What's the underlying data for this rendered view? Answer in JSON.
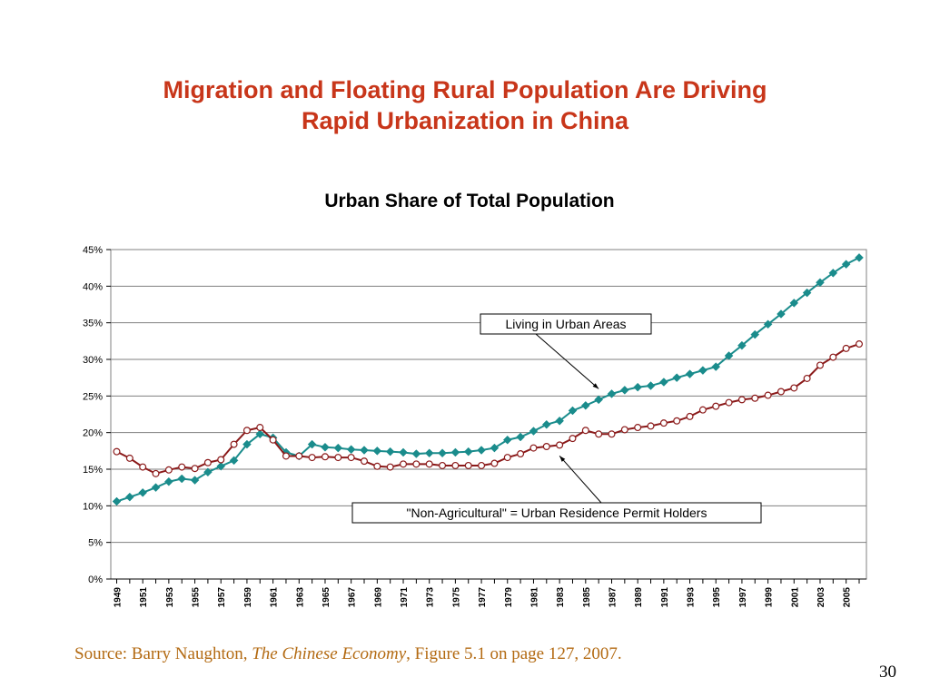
{
  "slide": {
    "title_line1": "Migration and Floating Rural Population Are Driving",
    "title_line2": "Rapid Urbanization in China",
    "source_prefix": "Source: Barry Naughton, ",
    "source_book": "The Chinese Economy",
    "source_suffix": ", Figure 5.1 on page 127, 2007.",
    "page_number": "30"
  },
  "chart_data": {
    "type": "line",
    "title": "Urban Share of Total Population",
    "xlabel": "",
    "ylabel": "",
    "ylim": [
      0,
      45
    ],
    "y_ticks": [
      "0%",
      "5%",
      "10%",
      "15%",
      "20%",
      "25%",
      "30%",
      "35%",
      "40%",
      "45%"
    ],
    "grid": true,
    "x": [
      1949,
      1950,
      1951,
      1952,
      1953,
      1954,
      1955,
      1956,
      1957,
      1958,
      1959,
      1960,
      1961,
      1962,
      1963,
      1964,
      1965,
      1966,
      1967,
      1968,
      1969,
      1970,
      1971,
      1972,
      1973,
      1974,
      1975,
      1976,
      1977,
      1978,
      1979,
      1980,
      1981,
      1982,
      1983,
      1984,
      1985,
      1986,
      1987,
      1988,
      1989,
      1990,
      1991,
      1992,
      1993,
      1994,
      1995,
      1996,
      1997,
      1998,
      1999,
      2000,
      2001,
      2002,
      2003,
      2004,
      2005,
      2006
    ],
    "x_tick_labels": [
      "1949",
      "1951",
      "1953",
      "1955",
      "1957",
      "1959",
      "1961",
      "1963",
      "1965",
      "1967",
      "1969",
      "1971",
      "1973",
      "1975",
      "1977",
      "1979",
      "1981",
      "1983",
      "1985",
      "1987",
      "1989",
      "1991",
      "1993",
      "1995",
      "1997",
      "1999",
      "2001",
      "2003",
      "2005"
    ],
    "series": [
      {
        "name": "Living in Urban Areas",
        "color": "#1a8c8c",
        "marker": "diamond",
        "values": [
          10.6,
          11.2,
          11.8,
          12.5,
          13.3,
          13.7,
          13.5,
          14.6,
          15.4,
          16.2,
          18.4,
          19.8,
          19.3,
          17.3,
          16.8,
          18.4,
          18.0,
          17.9,
          17.7,
          17.6,
          17.5,
          17.4,
          17.3,
          17.1,
          17.2,
          17.2,
          17.3,
          17.4,
          17.6,
          17.9,
          19.0,
          19.4,
          20.2,
          21.1,
          21.6,
          23.0,
          23.7,
          24.5,
          25.3,
          25.8,
          26.2,
          26.4,
          26.9,
          27.5,
          28.0,
          28.5,
          29.0,
          30.5,
          31.9,
          33.4,
          34.8,
          36.2,
          37.7,
          39.1,
          40.5,
          41.8,
          43.0,
          43.9
        ]
      },
      {
        "name": "\"Non-Agricultural\" = Urban Residence Permit Holders",
        "color": "#8b1a1a",
        "marker": "circle",
        "values": [
          17.4,
          16.5,
          15.3,
          14.4,
          14.9,
          15.3,
          15.1,
          15.9,
          16.3,
          18.4,
          20.3,
          20.7,
          19.0,
          16.8,
          16.8,
          16.6,
          16.7,
          16.6,
          16.6,
          16.1,
          15.4,
          15.3,
          15.7,
          15.7,
          15.7,
          15.5,
          15.5,
          15.5,
          15.5,
          15.8,
          16.6,
          17.1,
          17.9,
          18.1,
          18.3,
          19.2,
          20.3,
          19.8,
          19.8,
          20.4,
          20.7,
          20.9,
          21.3,
          21.6,
          22.2,
          23.1,
          23.6,
          24.1,
          24.5,
          24.7,
          25.1,
          25.6,
          26.1,
          27.4,
          29.2,
          30.3,
          31.5,
          32.1
        ]
      }
    ],
    "annotations": [
      {
        "text": "Living in Urban Areas",
        "series_index": 0,
        "x": 1986
      },
      {
        "text": "\"Non-Agricultural\" = Urban Residence Permit Holders",
        "series_index": 1,
        "x": 1983
      }
    ]
  }
}
